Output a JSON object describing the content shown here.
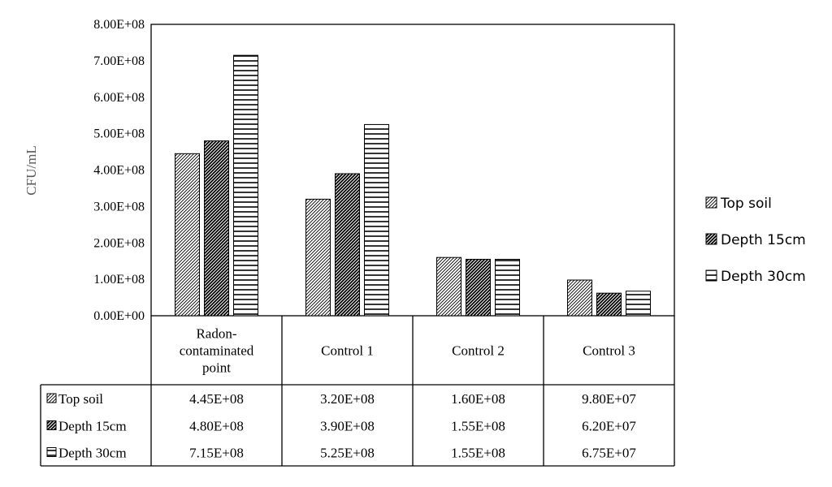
{
  "chart_data": {
    "type": "bar",
    "ylabel": "CFU/mL",
    "ylim": [
      0,
      800000000
    ],
    "y_ticks": [
      {
        "value": 0,
        "label": "0.00E+00"
      },
      {
        "value": 100000000,
        "label": "1.00E+08"
      },
      {
        "value": 200000000,
        "label": "2.00E+08"
      },
      {
        "value": 300000000,
        "label": "3.00E+08"
      },
      {
        "value": 400000000,
        "label": "4.00E+08"
      },
      {
        "value": 500000000,
        "label": "5.00E+08"
      },
      {
        "value": 600000000,
        "label": "6.00E+08"
      },
      {
        "value": 700000000,
        "label": "7.00E+08"
      },
      {
        "value": 800000000,
        "label": "8.00E+08"
      }
    ],
    "categories": [
      "Radon-contaminated point",
      "Control 1",
      "Control 2",
      "Control 3"
    ],
    "category_label_lines": [
      [
        "Radon-",
        "contaminated",
        "point"
      ],
      [
        "Control 1"
      ],
      [
        "Control 2"
      ],
      [
        "Control 3"
      ]
    ],
    "series": [
      {
        "name": "Top soil",
        "pattern": "diagonal-light",
        "values": [
          445000000,
          320000000,
          160000000,
          98000000
        ],
        "value_labels": [
          "4.45E+08",
          "3.20E+08",
          "1.60E+08",
          "9.80E+07"
        ]
      },
      {
        "name": "Depth 15cm",
        "pattern": "diagonal-dense",
        "values": [
          480000000,
          390000000,
          155000000,
          62000000
        ],
        "value_labels": [
          "4.80E+08",
          "3.90E+08",
          "1.55E+08",
          "6.20E+07"
        ]
      },
      {
        "name": "Depth 30cm",
        "pattern": "horizontal",
        "values": [
          715000000,
          525000000,
          155000000,
          67500000
        ],
        "value_labels": [
          "7.15E+08",
          "5.25E+08",
          "1.55E+08",
          "6.75E+07"
        ]
      }
    ],
    "legend_position": "right",
    "data_table": true,
    "grid": false,
    "colors": {
      "stroke": "#000000",
      "background": "#ffffff"
    }
  }
}
